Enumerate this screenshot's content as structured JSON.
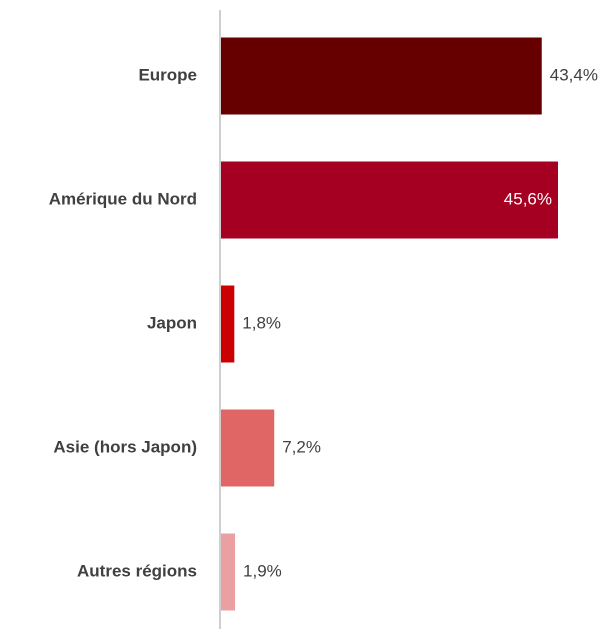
{
  "chart_data": {
    "type": "hbar",
    "categories": [
      "Europe",
      "Amérique du Nord",
      "Japon",
      "Asie (hors Japon)",
      "Autres régions"
    ],
    "values": [
      43.4,
      45.6,
      1.8,
      7.2,
      1.9
    ],
    "value_labels": [
      "43,4%",
      "45,6%",
      "1,8%",
      "7,2%",
      "1,9%"
    ],
    "colors": [
      "#660000",
      "#a50021",
      "#cc0000",
      "#e06666",
      "#eaa0a0"
    ]
  }
}
